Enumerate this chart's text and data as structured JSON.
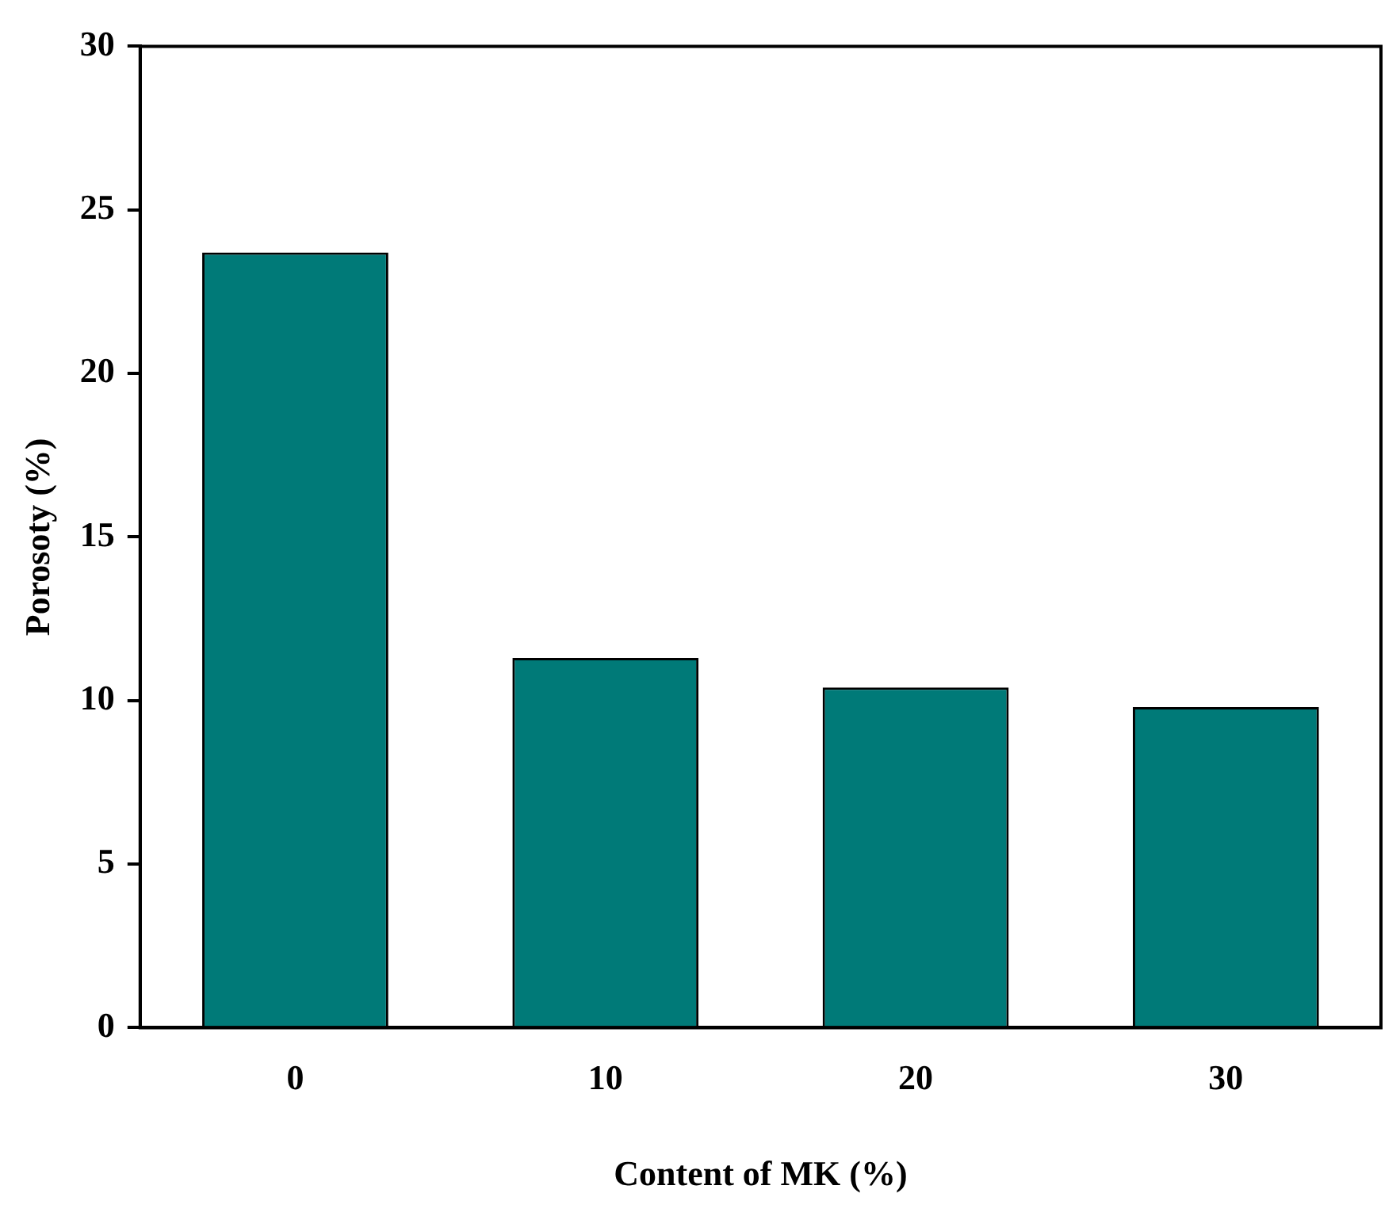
{
  "chart_data": {
    "type": "bar",
    "xlabel": "Content of MK (%)",
    "ylabel": "Porosoty (%)",
    "categories": [
      "0",
      "10",
      "20",
      "30"
    ],
    "values": [
      23.7,
      11.3,
      10.4,
      9.8
    ],
    "color": "#007a78",
    "ylim": [
      0,
      30
    ],
    "yticks": [
      0,
      5,
      10,
      15,
      20,
      25,
      30
    ]
  }
}
